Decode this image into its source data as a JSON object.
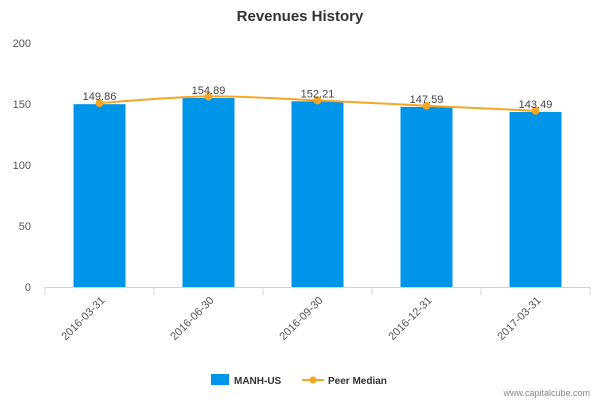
{
  "chart_data": {
    "type": "bar",
    "title": "Revenues History",
    "categories": [
      "2016-03-31",
      "2016-06-30",
      "2016-09-30",
      "2016-12-31",
      "2017-03-31"
    ],
    "series": [
      {
        "name": "MANH-US",
        "type": "bar",
        "values": [
          149.86,
          154.89,
          152.21,
          147.59,
          143.49
        ],
        "labels": [
          "149.86",
          "154.89",
          "152.21",
          "147.59",
          "143.49"
        ],
        "color": "#0095e8"
      },
      {
        "name": "Peer Median",
        "type": "line",
        "values": [
          150.8,
          156.2,
          153.0,
          148.6,
          144.5
        ],
        "color": "#f5a623"
      }
    ],
    "ylim": [
      0,
      200
    ],
    "yticks": [
      "0",
      "50",
      "100",
      "150",
      "200"
    ],
    "ytick_values": [
      0,
      50,
      100,
      150,
      200
    ],
    "grid": false,
    "legend_position": "bottom-center"
  },
  "credit": "www.capitalcube.com"
}
